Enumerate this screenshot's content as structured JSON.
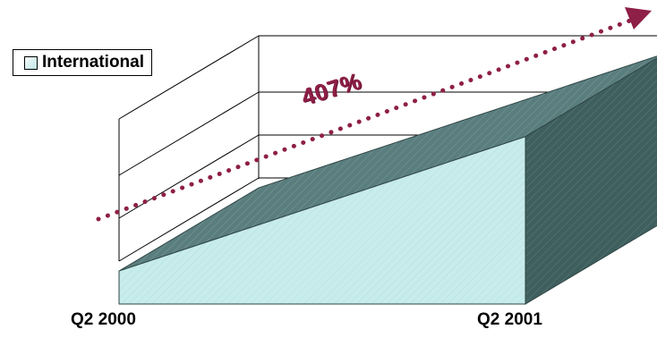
{
  "chart_data": {
    "type": "area",
    "categories": [
      "Q2 2000",
      "Q2 2001"
    ],
    "series": [
      {
        "name": "International",
        "values": [
          100,
          507
        ]
      }
    ],
    "annotation": "407%",
    "legend": "top-left",
    "grid": true,
    "colors": {
      "area_front": "#c8ecec",
      "area_top": "#5a7d7d",
      "area_side": "#3f5f5f",
      "arrow": "#8e1f46"
    }
  }
}
